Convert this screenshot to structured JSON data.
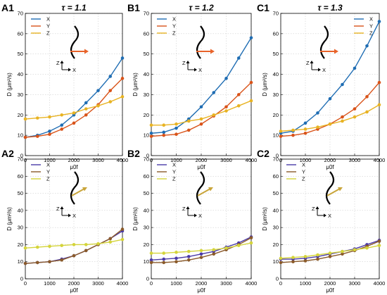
{
  "colors": {
    "X": "#1f6db3",
    "Y": "#d95319",
    "Z": "#e8b323",
    "X2": "#4a3aa8",
    "Y2": "#8a5a2a",
    "Z2": "#d4d43a"
  },
  "chart_data": [
    {
      "id": "A1",
      "type": "line",
      "panel_label": "A1",
      "title": "τ = 1.1",
      "xlabel": "μ0f",
      "ylabel": "D (μm²/s)",
      "xlim": [
        0,
        4000
      ],
      "ylim": [
        0,
        70
      ],
      "xticks": [
        0,
        1000,
        2000,
        3000,
        4000
      ],
      "yticks": [
        0,
        10,
        20,
        30,
        40,
        50,
        60,
        70
      ],
      "grid": true,
      "legend": "top-left",
      "x": [
        0,
        500,
        1000,
        1500,
        2000,
        2500,
        3000,
        3500,
        4000
      ],
      "series": [
        {
          "name": "X",
          "color": "#1f6db3",
          "values": [
            9,
            10,
            12,
            15,
            20,
            26,
            32,
            39,
            48
          ]
        },
        {
          "name": "Y",
          "color": "#d95319",
          "values": [
            9,
            9.5,
            10.5,
            13,
            16,
            20,
            25,
            32,
            38
          ]
        },
        {
          "name": "Z",
          "color": "#e8b323",
          "values": [
            18,
            18.5,
            19,
            20,
            21,
            23,
            24.5,
            26.5,
            29
          ]
        }
      ]
    },
    {
      "id": "B1",
      "type": "line",
      "panel_label": "B1",
      "title": "τ = 1.2",
      "xlabel": "μ0f",
      "ylabel": "D (μm²/s)",
      "xlim": [
        0,
        4000
      ],
      "ylim": [
        0,
        70
      ],
      "xticks": [
        0,
        1000,
        2000,
        3000,
        4000
      ],
      "yticks": [
        0,
        10,
        20,
        30,
        40,
        50,
        60,
        70
      ],
      "grid": true,
      "legend": "top-left",
      "x": [
        0,
        500,
        1000,
        1500,
        2000,
        2500,
        3000,
        3500,
        4000
      ],
      "series": [
        {
          "name": "X",
          "color": "#1f6db3",
          "values": [
            11,
            11.5,
            13.5,
            18,
            24,
            31,
            38,
            48,
            58
          ]
        },
        {
          "name": "Y",
          "color": "#d95319",
          "values": [
            9.5,
            10,
            10.5,
            12.5,
            15.5,
            19.5,
            24,
            30,
            36
          ]
        },
        {
          "name": "Z",
          "color": "#e8b323",
          "values": [
            15,
            15,
            15.5,
            17,
            18,
            20,
            22,
            24.5,
            27
          ]
        }
      ]
    },
    {
      "id": "C1",
      "type": "line",
      "panel_label": "C1",
      "title": "τ = 1.3",
      "xlabel": "μ0f",
      "ylabel": "D (μm²/s)",
      "xlim": [
        0,
        4000
      ],
      "ylim": [
        0,
        70
      ],
      "xticks": [
        0,
        1000,
        2000,
        3000,
        4000
      ],
      "yticks": [
        0,
        10,
        20,
        30,
        40,
        50,
        60,
        70
      ],
      "grid": true,
      "legend": "top-right",
      "x": [
        0,
        500,
        1000,
        1500,
        2000,
        2500,
        3000,
        3500,
        4000
      ],
      "series": [
        {
          "name": "X",
          "color": "#1f6db3",
          "values": [
            11,
            12,
            16,
            21,
            28,
            35,
            43,
            54,
            66
          ]
        },
        {
          "name": "Y",
          "color": "#d95319",
          "values": [
            9.5,
            10,
            11,
            13,
            15.5,
            19,
            23,
            29,
            36
          ]
        },
        {
          "name": "Z",
          "color": "#e8b323",
          "values": [
            12,
            12.5,
            13,
            14,
            15.5,
            17,
            19,
            21.5,
            25
          ]
        }
      ]
    },
    {
      "id": "A2",
      "type": "line",
      "panel_label": "A2",
      "title": "",
      "xlabel": "μ0f",
      "ylabel": "D (μm²/s)",
      "xlim": [
        0,
        4000
      ],
      "ylim": [
        0,
        70
      ],
      "xticks": [
        0,
        1000,
        2000,
        3000,
        4000
      ],
      "yticks": [
        0,
        10,
        20,
        30,
        40,
        50,
        60,
        70
      ],
      "grid": true,
      "legend": "top-left",
      "x": [
        0,
        500,
        1000,
        1500,
        2000,
        2500,
        3000,
        3500,
        4000
      ],
      "series": [
        {
          "name": "X",
          "color": "#4a3aa8",
          "values": [
            9,
            9.5,
            10,
            11.5,
            13.5,
            16.5,
            20,
            23.5,
            28
          ]
        },
        {
          "name": "Y",
          "color": "#8a5a2a",
          "values": [
            9,
            9.5,
            10,
            11,
            13.5,
            16.5,
            20,
            23.5,
            29
          ]
        },
        {
          "name": "Z",
          "color": "#d4d43a",
          "values": [
            18,
            18.5,
            19,
            19.5,
            20,
            20,
            20.5,
            21.5,
            23
          ]
        }
      ]
    },
    {
      "id": "B2",
      "type": "line",
      "panel_label": "B2",
      "title": "",
      "xlabel": "μ0f",
      "ylabel": "D (μm²/s)",
      "xlim": [
        0,
        4000
      ],
      "ylim": [
        0,
        70
      ],
      "xticks": [
        0,
        1000,
        2000,
        3000,
        4000
      ],
      "yticks": [
        0,
        10,
        20,
        30,
        40,
        50,
        60,
        70
      ],
      "grid": true,
      "legend": "top-left",
      "x": [
        0,
        500,
        1000,
        1500,
        2000,
        2500,
        3000,
        3500,
        4000
      ],
      "series": [
        {
          "name": "X",
          "color": "#4a3aa8",
          "values": [
            11,
            11.5,
            12,
            13,
            14.5,
            16,
            18.5,
            21,
            24.5
          ]
        },
        {
          "name": "Y",
          "color": "#8a5a2a",
          "values": [
            9.5,
            9.5,
            10,
            11,
            12.5,
            14.5,
            17,
            20,
            24
          ]
        },
        {
          "name": "Z",
          "color": "#d4d43a",
          "values": [
            15,
            15,
            15.5,
            16,
            16.5,
            17,
            18,
            19.5,
            21
          ]
        }
      ]
    },
    {
      "id": "C2",
      "type": "line",
      "panel_label": "C2",
      "title": "",
      "xlabel": "μ0f",
      "ylabel": "D (μm²/s)",
      "xlim": [
        0,
        4000
      ],
      "ylim": [
        0,
        70
      ],
      "xticks": [
        0,
        1000,
        2000,
        3000,
        4000
      ],
      "yticks": [
        0,
        10,
        20,
        30,
        40,
        50,
        60,
        70
      ],
      "grid": true,
      "legend": "top-left",
      "x": [
        0,
        500,
        1000,
        1500,
        2000,
        2500,
        3000,
        3500,
        4000
      ],
      "series": [
        {
          "name": "X",
          "color": "#4a3aa8",
          "values": [
            11.5,
            11.5,
            12,
            13,
            14.5,
            16,
            17.5,
            20,
            22.5
          ]
        },
        {
          "name": "Y",
          "color": "#8a5a2a",
          "values": [
            9.5,
            10,
            10.5,
            11.5,
            13,
            14.5,
            16.5,
            19,
            22
          ]
        },
        {
          "name": "Z",
          "color": "#d4d43a",
          "values": [
            12,
            12.5,
            13,
            14,
            15,
            16,
            17,
            18,
            19.5
          ]
        }
      ]
    }
  ]
}
